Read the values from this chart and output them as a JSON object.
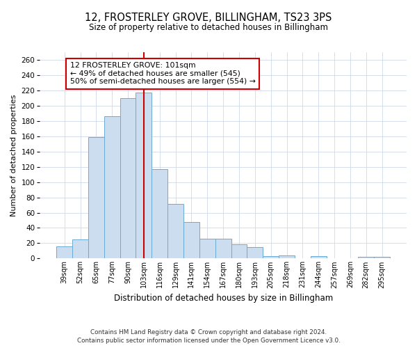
{
  "title": "12, FROSTERLEY GROVE, BILLINGHAM, TS23 3PS",
  "subtitle": "Size of property relative to detached houses in Billingham",
  "xlabel": "Distribution of detached houses by size in Billingham",
  "ylabel": "Number of detached properties",
  "bar_labels": [
    "39sqm",
    "52sqm",
    "65sqm",
    "77sqm",
    "90sqm",
    "103sqm",
    "116sqm",
    "129sqm",
    "141sqm",
    "154sqm",
    "167sqm",
    "180sqm",
    "193sqm",
    "205sqm",
    "218sqm",
    "231sqm",
    "244sqm",
    "257sqm",
    "269sqm",
    "282sqm",
    "295sqm"
  ],
  "bar_values": [
    16,
    25,
    159,
    186,
    210,
    217,
    117,
    71,
    48,
    26,
    26,
    19,
    15,
    3,
    4,
    0,
    3,
    0,
    0,
    2,
    2
  ],
  "bar_color": "#ccddf0",
  "bar_edge_color": "#6aaad4",
  "vline_x": 5.0,
  "vline_color": "#cc0000",
  "ylim": [
    0,
    270
  ],
  "yticks": [
    0,
    20,
    40,
    60,
    80,
    100,
    120,
    140,
    160,
    180,
    200,
    220,
    240,
    260
  ],
  "annotation_box_text": "12 FROSTERLEY GROVE: 101sqm\n← 49% of detached houses are smaller (545)\n50% of semi-detached houses are larger (554) →",
  "annotation_box_color": "#cc0000",
  "footer_line1": "Contains HM Land Registry data © Crown copyright and database right 2024.",
  "footer_line2": "Contains public sector information licensed under the Open Government Licence v3.0.",
  "bg_color": "#ffffff",
  "grid_color": "#d0d8e8"
}
